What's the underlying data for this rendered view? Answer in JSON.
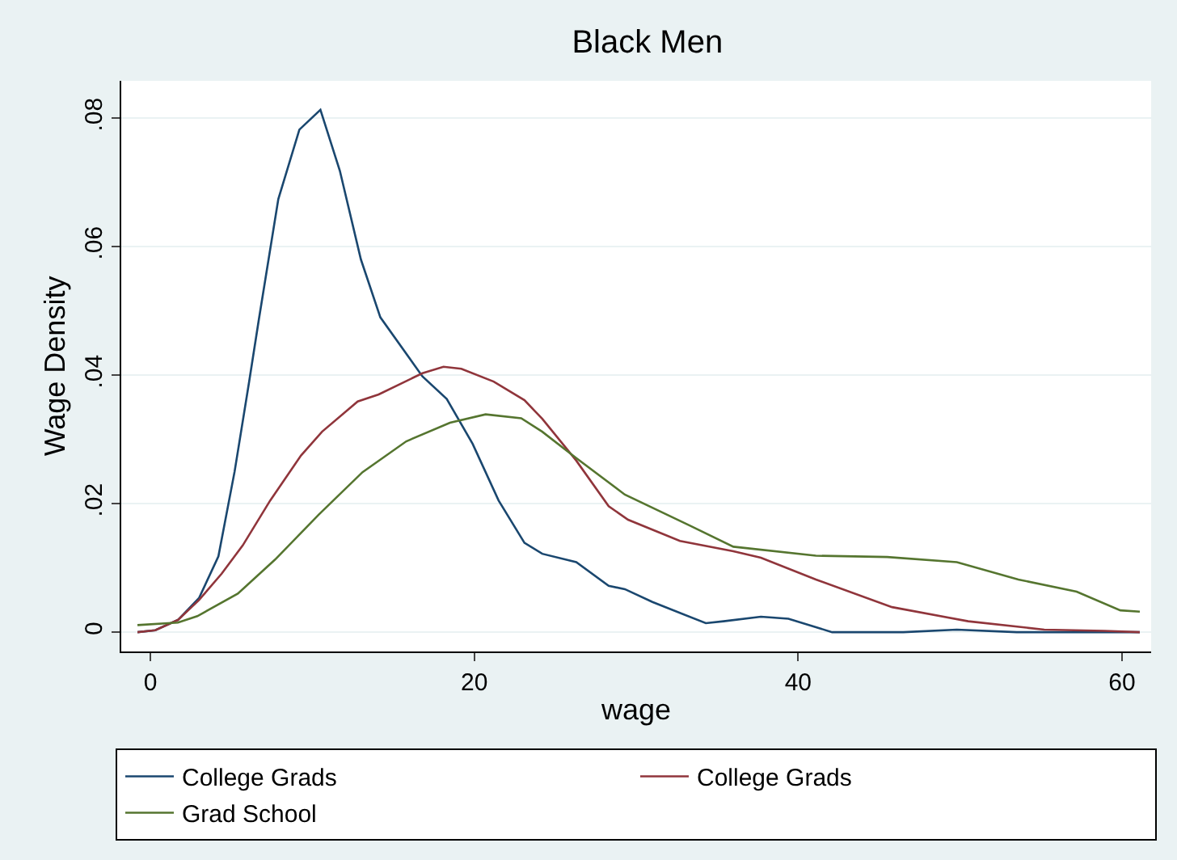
{
  "chart_data": {
    "type": "line",
    "title": "Black Men",
    "xlabel": "wage",
    "ylabel": "Wage Density",
    "xlim": [
      -1.8,
      61.8
    ],
    "xticks": [
      0,
      20,
      40,
      60
    ],
    "ylim": [
      -0.003,
      0.0858
    ],
    "yticks": [
      {
        "value": 0,
        "label": "0"
      },
      {
        "value": 0.02,
        "label": ".02"
      },
      {
        "value": 0.04,
        "label": ".04"
      },
      {
        "value": 0.06,
        "label": ".06"
      },
      {
        "value": 0.08,
        "label": ".08"
      }
    ],
    "grid": "y",
    "legend": "bottom",
    "marker": "none",
    "line_style": "solid",
    "series": [
      {
        "name": "College Grads",
        "color": "#1a476f",
        "x": [
          -0.8,
          0.3,
          1.7,
          3,
          4.2,
          5.2,
          6.1,
          6.7,
          7.9,
          9.2,
          10.5,
          11.7,
          13,
          14.2,
          16.8,
          18.3,
          19.9,
          21.5,
          23.1,
          24.2,
          26.3,
          28.3,
          29.3,
          31,
          34.3,
          35.4,
          37.7,
          39.4,
          42.1,
          46.5,
          49.8,
          53.5,
          59.1,
          61.1
        ],
        "values": [
          0,
          0.0003,
          0.0019,
          0.0053,
          0.0118,
          0.025,
          0.039,
          0.0487,
          0.0674,
          0.0782,
          0.0813,
          0.0718,
          0.058,
          0.049,
          0.0398,
          0.0363,
          0.0293,
          0.0205,
          0.0139,
          0.0122,
          0.0109,
          0.0072,
          0.0067,
          0.0047,
          0.0014,
          0.0017,
          0.0024,
          0.0021,
          0,
          0,
          0.0004,
          0,
          0,
          0
        ]
      },
      {
        "name": "College Grads",
        "color": "#90353b",
        "x": [
          -0.8,
          0.3,
          1.7,
          3,
          4.4,
          5.7,
          7.4,
          9.3,
          10.6,
          12.8,
          14.1,
          16.8,
          18.1,
          19.2,
          21.2,
          23.1,
          24.2,
          26.3,
          28.3,
          29.5,
          32.7,
          36,
          37.7,
          41.1,
          45.8,
          50.5,
          55.2,
          58.9,
          61.1
        ],
        "values": [
          0,
          0.0003,
          0.0019,
          0.005,
          0.0091,
          0.0135,
          0.0205,
          0.0275,
          0.0312,
          0.0359,
          0.037,
          0.0403,
          0.0413,
          0.041,
          0.039,
          0.0361,
          0.0332,
          0.0267,
          0.0196,
          0.0175,
          0.0142,
          0.0126,
          0.0116,
          0.0082,
          0.0039,
          0.0017,
          0.0004,
          0.0002,
          0
        ]
      },
      {
        "name": "Grad School",
        "color": "#55752f",
        "x": [
          -0.8,
          1.7,
          2.9,
          5.4,
          7.7,
          10.4,
          13.1,
          15.8,
          18.5,
          20.7,
          22.9,
          24.2,
          26.3,
          29.3,
          33.3,
          36,
          41.1,
          45.5,
          49.8,
          53.6,
          57.2,
          59.9,
          61.1
        ],
        "values": [
          0.0011,
          0.0015,
          0.0025,
          0.006,
          0.0113,
          0.0183,
          0.0249,
          0.0297,
          0.0326,
          0.0339,
          0.0333,
          0.0312,
          0.0271,
          0.0214,
          0.0166,
          0.0133,
          0.0119,
          0.0117,
          0.0109,
          0.0082,
          0.0063,
          0.0034,
          0.0032
        ]
      }
    ]
  }
}
